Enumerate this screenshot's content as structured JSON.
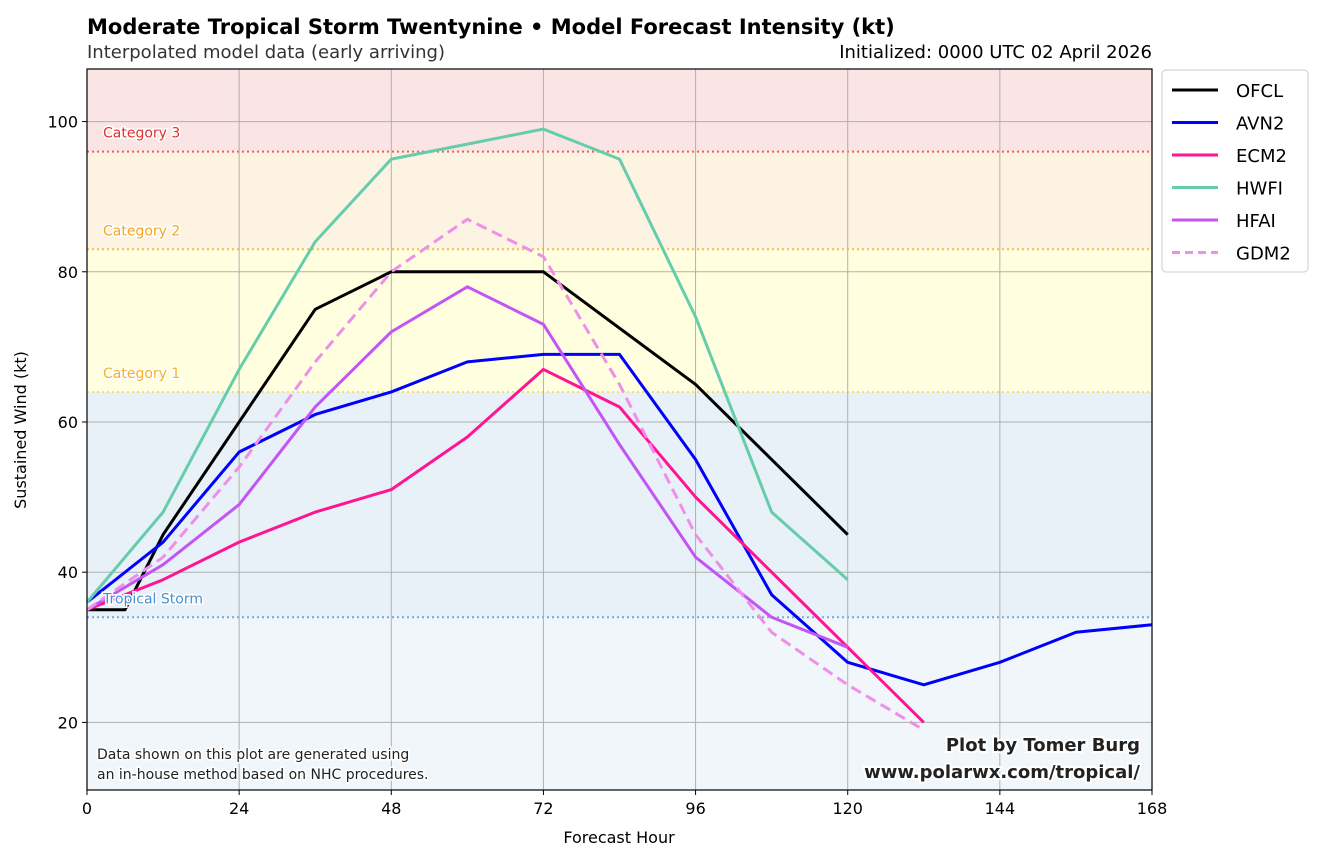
{
  "chart_data": {
    "type": "line",
    "title": "Moderate Tropical Storm Twentynine • Model Forecast Intensity (kt)",
    "subtitle": "Interpolated model data (early arriving)",
    "init_text": "Initialized: 0000 UTC 02 April 2026",
    "xlabel": "Forecast Hour",
    "ylabel": "Sustained Wind (kt)",
    "xlim": [
      0,
      168
    ],
    "ylim": [
      11,
      107
    ],
    "xticks": [
      0,
      24,
      48,
      72,
      96,
      120,
      144,
      168
    ],
    "yticks": [
      20,
      40,
      60,
      80,
      100
    ],
    "grid": true,
    "legend_placement": "outside-top-right",
    "bands": [
      {
        "name": "below",
        "from": 11,
        "to": 34,
        "color": "#f1f6fb"
      },
      {
        "name": "Tropical Storm",
        "from": 34,
        "to": 64,
        "color": "#e8f0f8",
        "line": "#6aaee0"
      },
      {
        "name": "Category 1",
        "from": 64,
        "to": 83,
        "color": "#ffffe0",
        "line": "#f0e070",
        "labelColor": "#f5b030"
      },
      {
        "name": "Category 2",
        "from": 83,
        "to": 96,
        "color": "#fdf3e2",
        "line": "#f5c040",
        "labelColor": "#f5a623"
      },
      {
        "name": "Category 3",
        "from": 96,
        "to": 107,
        "color": "#fae4e4",
        "line": "#f06060",
        "labelColor": "#e03030"
      }
    ],
    "band_labels": [
      {
        "text": "Tropical Storm",
        "y": 34,
        "color": "#4a90d0"
      },
      {
        "text": "Category 1",
        "y": 64,
        "color": "#f5b030"
      },
      {
        "text": "Category 2",
        "y": 83,
        "color": "#f5a623"
      },
      {
        "text": "Category 3",
        "y": 96,
        "color": "#e03030"
      }
    ],
    "series": [
      {
        "name": "OFCL",
        "color": "#000000",
        "dash": false,
        "x": [
          0,
          6,
          12,
          24,
          36,
          48,
          72,
          96,
          120
        ],
        "y": [
          35,
          35,
          45,
          60,
          75,
          80,
          80,
          65,
          45
        ]
      },
      {
        "name": "AVN2",
        "color": "#0000ff",
        "dash": false,
        "x": [
          0,
          12,
          24,
          36,
          48,
          60,
          72,
          84,
          96,
          108,
          120,
          132,
          144,
          156,
          168
        ],
        "y": [
          36,
          44,
          56,
          61,
          64,
          68,
          69,
          69,
          55,
          37,
          28,
          25,
          28,
          32,
          33
        ]
      },
      {
        "name": "ECM2",
        "color": "#ff1493",
        "dash": false,
        "x": [
          0,
          12,
          24,
          36,
          48,
          60,
          72,
          84,
          96,
          108,
          120,
          132
        ],
        "y": [
          35,
          39,
          44,
          48,
          51,
          58,
          67,
          62,
          50,
          40,
          30,
          20
        ]
      },
      {
        "name": "HWFI",
        "color": "#66cdaa",
        "dash": false,
        "x": [
          0,
          12,
          24,
          36,
          48,
          60,
          72,
          84,
          96,
          108,
          120
        ],
        "y": [
          36,
          48,
          67,
          84,
          95,
          97,
          99,
          95,
          74,
          48,
          39
        ]
      },
      {
        "name": "HFAI",
        "color": "#c455f5",
        "dash": false,
        "x": [
          0,
          12,
          24,
          36,
          48,
          60,
          72,
          84,
          96,
          108,
          120
        ],
        "y": [
          35,
          41,
          49,
          62,
          72,
          78,
          73,
          57,
          42,
          34,
          30
        ]
      },
      {
        "name": "GDM2",
        "color": "#ee90e8",
        "dash": true,
        "x": [
          0,
          12,
          24,
          36,
          48,
          60,
          72,
          84,
          96,
          108,
          120,
          132
        ],
        "y": [
          35,
          42,
          54,
          68,
          80,
          87,
          82,
          65,
          45,
          32,
          25,
          19
        ]
      }
    ],
    "note": [
      "Data shown on this plot are generated using",
      "an in-house method based on NHC procedures."
    ],
    "credit": [
      "Plot by Tomer Burg",
      "www.polarwx.com/tropical/"
    ]
  }
}
